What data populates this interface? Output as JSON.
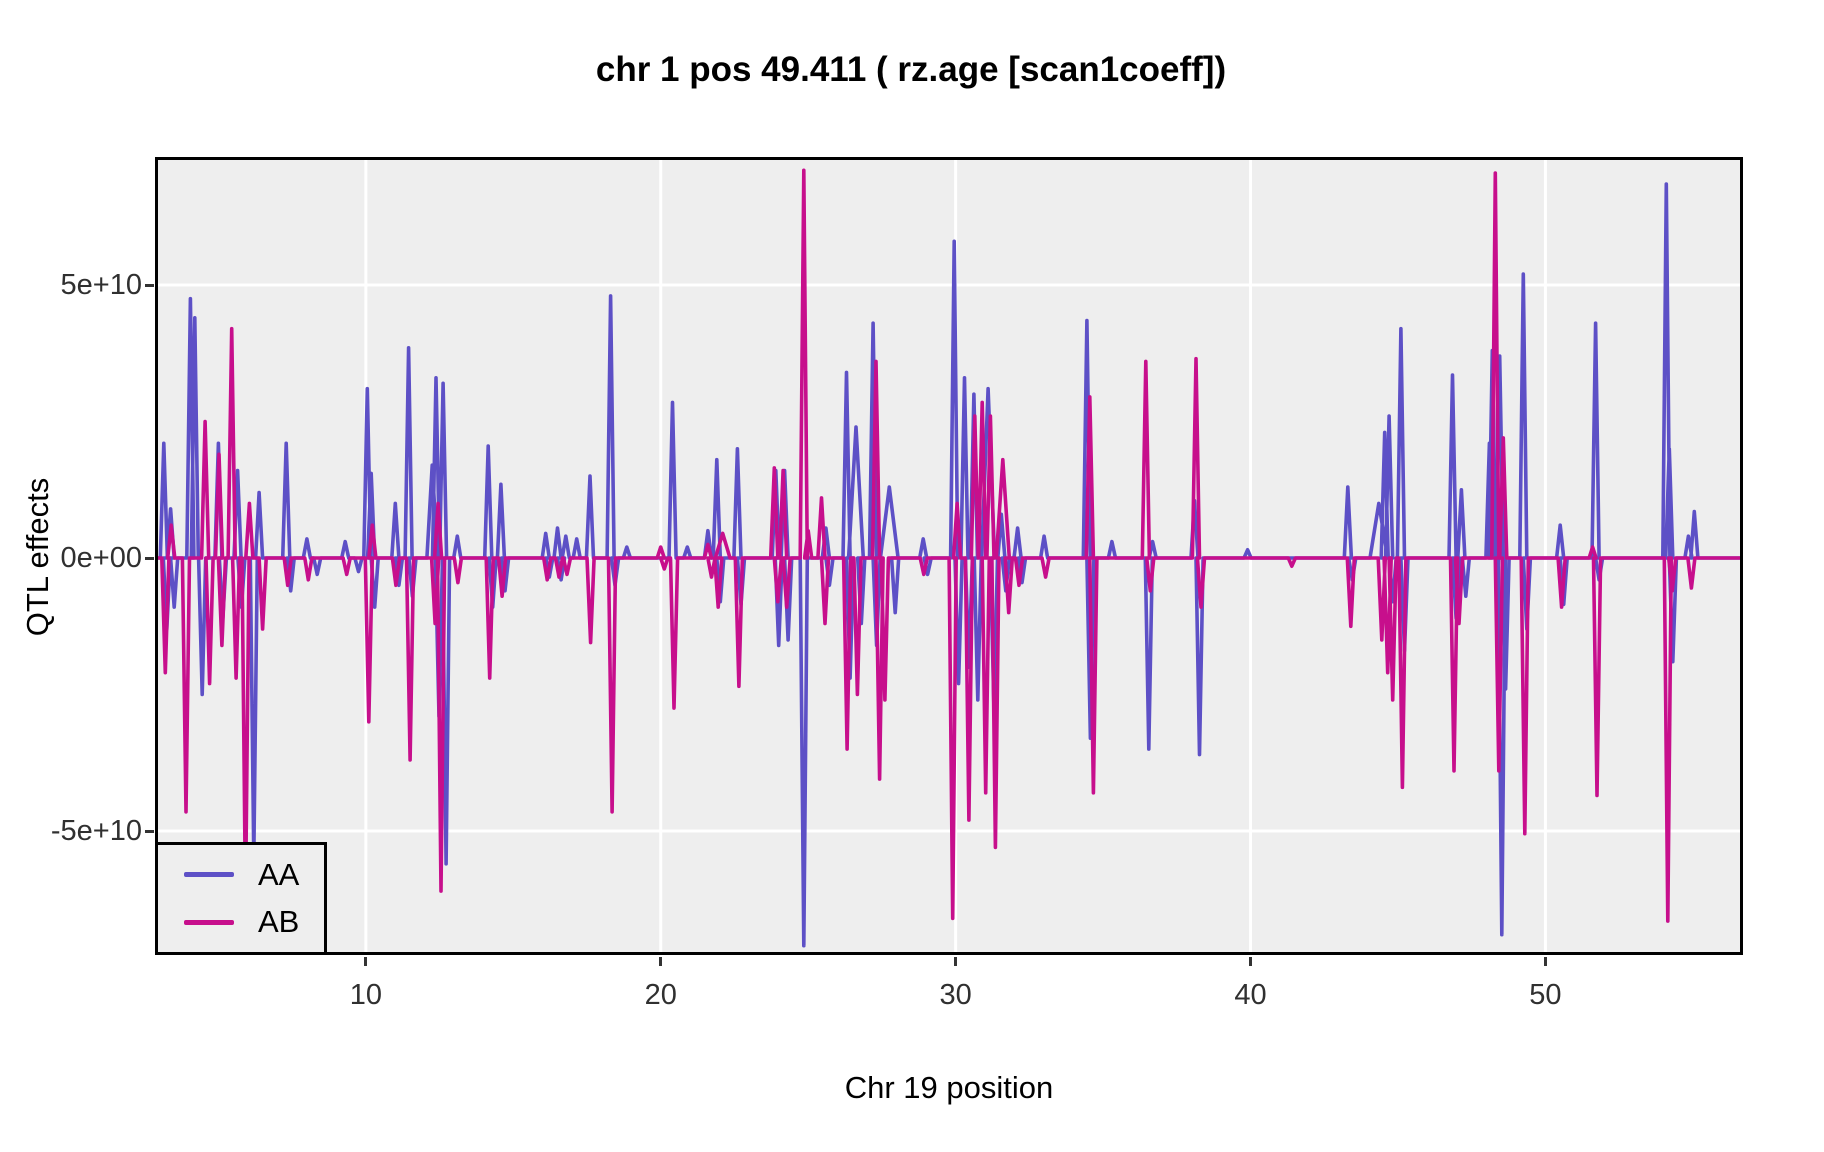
{
  "title": "chr 1 pos 49.411 ( rz.age  [scan1coeff])",
  "chart_data": {
    "type": "line",
    "title": "chr 1 pos 49.411 ( rz.age  [scan1coeff])",
    "xlabel": "Chr 19 position",
    "ylabel": "QTL effects",
    "xlim": [
      2.85,
      56.7
    ],
    "ylim": [
      -73000000000.0,
      73500000000.0
    ],
    "x_ticks": [
      10,
      20,
      30,
      40,
      50
    ],
    "y_ticks": [
      {
        "value": 50000000000.0,
        "label": "5e+10"
      },
      {
        "value": 0,
        "label": "0e+00"
      },
      {
        "value": -50000000000.0,
        "label": "-5e+10"
      }
    ],
    "grid": true,
    "panel_background": "#EEEEEE",
    "gridline_color": "#FFFFFF",
    "border_color": "#000000",
    "legend_position": "bottom-left",
    "series": [
      {
        "name": "AA",
        "color": "#5D50C6",
        "baseline": 0,
        "spikes": [
          [
            3.15,
            21000000000.0
          ],
          [
            3.25,
            -13000000000.0
          ],
          [
            3.38,
            9000000000.0
          ],
          [
            3.5,
            -9000000000.0
          ],
          [
            4.05,
            47500000000.0
          ],
          [
            4.2,
            44000000000.0
          ],
          [
            4.45,
            -25000000000.0
          ],
          [
            5.0,
            21000000000.0
          ],
          [
            5.15,
            -11000000000.0
          ],
          [
            5.65,
            16000000000.0
          ],
          [
            5.78,
            -9000000000.0
          ],
          [
            6.2,
            -55000000000.0
          ],
          [
            6.38,
            12000000000.0
          ],
          [
            7.3,
            21000000000.0
          ],
          [
            7.45,
            -6000000000.0
          ],
          [
            8.0,
            3500000000.0
          ],
          [
            8.35,
            -3000000000.0
          ],
          [
            9.3,
            3000000000.0
          ],
          [
            9.75,
            -2500000000.0
          ],
          [
            10.05,
            31000000000.0
          ],
          [
            10.18,
            15500000000.0
          ],
          [
            10.3,
            -9000000000.0
          ],
          [
            11.0,
            10000000000.0
          ],
          [
            11.12,
            -5000000000.0
          ],
          [
            11.45,
            38500000000.0
          ],
          [
            11.58,
            -7000000000.0
          ],
          [
            12.25,
            17000000000.0,
            0.18
          ],
          [
            12.38,
            33000000000.0
          ],
          [
            12.48,
            -29000000000.0
          ],
          [
            12.62,
            32000000000.0
          ],
          [
            12.72,
            -56000000000.0
          ],
          [
            13.1,
            4000000000.0
          ],
          [
            14.15,
            20500000000.0
          ],
          [
            14.3,
            -9000000000.0
          ],
          [
            14.58,
            13500000000.0
          ],
          [
            14.72,
            -6000000000.0
          ],
          [
            16.1,
            4500000000.0
          ],
          [
            16.22,
            -3500000000.0
          ],
          [
            16.5,
            5500000000.0
          ],
          [
            16.62,
            -4000000000.0
          ],
          [
            16.78,
            4000000000.0
          ],
          [
            17.15,
            3500000000.0
          ],
          [
            17.6,
            15000000000.0
          ],
          [
            18.3,
            48000000000.0
          ],
          [
            18.45,
            -5000000000.0
          ],
          [
            18.85,
            2000000000.0
          ],
          [
            20.4,
            28500000000.0
          ],
          [
            20.9,
            2000000000.0
          ],
          [
            21.6,
            5000000000.0
          ],
          [
            21.9,
            18000000000.0
          ],
          [
            22.02,
            -8000000000.0
          ],
          [
            22.6,
            20000000000.0
          ],
          [
            22.72,
            -8500000000.0
          ],
          [
            23.9,
            16000000000.0
          ],
          [
            24.0,
            -16000000000.0
          ],
          [
            24.2,
            16000000000.0
          ],
          [
            24.32,
            -15000000000.0
          ],
          [
            24.85,
            -71000000000.0
          ],
          [
            25.6,
            5500000000.0
          ],
          [
            25.72,
            -5000000000.0
          ],
          [
            26.3,
            34000000000.0
          ],
          [
            26.42,
            -22000000000.0
          ],
          [
            26.62,
            24000000000.0,
            0.25
          ],
          [
            26.8,
            -12000000000.0
          ],
          [
            27.2,
            43000000000.0
          ],
          [
            27.32,
            -16000000000.0
          ],
          [
            27.75,
            13000000000.0,
            0.3
          ],
          [
            27.95,
            -10000000000.0
          ],
          [
            28.9,
            3500000000.0
          ],
          [
            29.05,
            -3000000000.0
          ],
          [
            29.95,
            58000000000.0
          ],
          [
            30.1,
            -23000000000.0
          ],
          [
            30.3,
            33000000000.0
          ],
          [
            30.45,
            -20000000000.0
          ],
          [
            30.62,
            30000000000.0
          ],
          [
            30.75,
            -26000000000.0
          ],
          [
            31.1,
            31000000000.0,
            0.22
          ],
          [
            31.3,
            -28000000000.0
          ],
          [
            31.55,
            8000000000.0
          ],
          [
            31.7,
            -6000000000.0
          ],
          [
            32.1,
            5500000000.0
          ],
          [
            32.25,
            -4500000000.0
          ],
          [
            33.0,
            4000000000.0
          ],
          [
            34.45,
            43500000000.0
          ],
          [
            34.57,
            -33000000000.0
          ],
          [
            35.3,
            3000000000.0
          ],
          [
            36.55,
            -35000000000.0
          ],
          [
            36.68,
            3000000000.0
          ],
          [
            38.1,
            10500000000.0
          ],
          [
            38.27,
            -36000000000.0
          ],
          [
            39.9,
            1500000000.0
          ],
          [
            43.3,
            13000000000.0
          ],
          [
            43.45,
            -4000000000.0
          ],
          [
            44.35,
            10000000000.0,
            0.3
          ],
          [
            44.55,
            23000000000.0
          ],
          [
            44.7,
            26000000000.0
          ],
          [
            44.82,
            -8000000000.0
          ],
          [
            45.1,
            42000000000.0
          ],
          [
            45.22,
            -17000000000.0
          ],
          [
            46.85,
            33500000000.0
          ],
          [
            46.97,
            -11000000000.0
          ],
          [
            47.15,
            12500000000.0
          ],
          [
            47.3,
            -7000000000.0
          ],
          [
            48.1,
            21000000000.0
          ],
          [
            48.2,
            38000000000.0
          ],
          [
            48.45,
            37000000000.0
          ],
          [
            48.52,
            -69000000000.0
          ],
          [
            48.65,
            -24000000000.0
          ],
          [
            49.25,
            52000000000.0
          ],
          [
            49.37,
            -13000000000.0
          ],
          [
            50.5,
            6000000000.0
          ],
          [
            50.62,
            -8500000000.0
          ],
          [
            51.7,
            43000000000.0
          ],
          [
            51.82,
            -4000000000.0
          ],
          [
            54.1,
            68500000000.0
          ],
          [
            54.2,
            20000000000.0
          ],
          [
            54.32,
            -19000000000.0
          ],
          [
            54.85,
            4000000000.0
          ],
          [
            55.05,
            8500000000.0
          ]
        ]
      },
      {
        "name": "AB",
        "color": "#C70F8C",
        "baseline": 0,
        "spikes": [
          [
            3.2,
            -21000000000.0
          ],
          [
            3.4,
            6000000000.0
          ],
          [
            3.9,
            -46500000000.0
          ],
          [
            4.55,
            25000000000.0
          ],
          [
            4.7,
            -23000000000.0
          ],
          [
            5.02,
            19000000000.0
          ],
          [
            5.12,
            -16000000000.0
          ],
          [
            5.45,
            42000000000.0
          ],
          [
            5.6,
            -22000000000.0
          ],
          [
            5.92,
            -63000000000.0
          ],
          [
            6.05,
            10000000000.0
          ],
          [
            6.5,
            -13000000000.0
          ],
          [
            7.35,
            -5000000000.0
          ],
          [
            8.05,
            -4000000000.0
          ],
          [
            9.35,
            -3000000000.0
          ],
          [
            10.1,
            -30000000000.0
          ],
          [
            10.22,
            6000000000.0
          ],
          [
            11.02,
            -5000000000.0
          ],
          [
            11.5,
            -37000000000.0
          ],
          [
            12.35,
            -12000000000.0
          ],
          [
            12.45,
            10000000000.0
          ],
          [
            12.55,
            -61000000000.0
          ],
          [
            13.12,
            -4500000000.0
          ],
          [
            14.2,
            -22000000000.0
          ],
          [
            14.62,
            -7000000000.0
          ],
          [
            16.15,
            -4000000000.0
          ],
          [
            16.55,
            -3500000000.0
          ],
          [
            16.82,
            -3000000000.0
          ],
          [
            17.62,
            -15500000000.0
          ],
          [
            18.35,
            -46500000000.0
          ],
          [
            20.0,
            2000000000.0
          ],
          [
            20.12,
            -2000000000.0
          ],
          [
            20.45,
            -27500000000.0
          ],
          [
            21.6,
            2500000000.0
          ],
          [
            21.72,
            -3500000000.0
          ],
          [
            21.95,
            -9000000000.0
          ],
          [
            22.1,
            4500000000.0,
            0.25
          ],
          [
            22.65,
            -23500000000.0
          ],
          [
            23.85,
            16500000000.0
          ],
          [
            23.97,
            -8000000000.0
          ],
          [
            24.15,
            16000000000.0
          ],
          [
            24.27,
            -9000000000.0
          ],
          [
            24.85,
            71000000000.0
          ],
          [
            25.0,
            5000000000.0
          ],
          [
            25.45,
            11000000000.0
          ],
          [
            25.57,
            -12000000000.0
          ],
          [
            26.32,
            -35000000000.0
          ],
          [
            26.67,
            -25000000000.0
          ],
          [
            27.3,
            36000000000.0
          ],
          [
            27.42,
            -40500000000.0
          ],
          [
            27.6,
            -26000000000.0
          ],
          [
            28.92,
            -3000000000.0
          ],
          [
            29.9,
            -66000000000.0
          ],
          [
            30.05,
            10000000000.0
          ],
          [
            30.45,
            -48000000000.0
          ],
          [
            30.65,
            26000000000.0
          ],
          [
            30.9,
            28500000000.0
          ],
          [
            31.02,
            -43000000000.0
          ],
          [
            31.18,
            26000000000.0
          ],
          [
            31.35,
            -53000000000.0
          ],
          [
            31.6,
            18000000000.0,
            0.22
          ],
          [
            31.8,
            -10000000000.0
          ],
          [
            32.15,
            -5000000000.0
          ],
          [
            33.05,
            -3500000000.0
          ],
          [
            34.55,
            29500000000.0
          ],
          [
            34.67,
            -43000000000.0
          ],
          [
            36.45,
            36000000000.0
          ],
          [
            36.6,
            -6000000000.0
          ],
          [
            38.15,
            36500000000.0
          ],
          [
            38.32,
            -9000000000.0
          ],
          [
            41.4,
            -1500000000.0
          ],
          [
            43.4,
            -12500000000.0
          ],
          [
            44.45,
            -15000000000.0
          ],
          [
            44.65,
            -21000000000.0
          ],
          [
            44.82,
            -26000000000.0
          ],
          [
            45.15,
            -42000000000.0
          ],
          [
            46.9,
            -39000000000.0
          ],
          [
            47.07,
            -12000000000.0
          ],
          [
            48.3,
            70500000000.0
          ],
          [
            48.42,
            -39000000000.0
          ],
          [
            48.57,
            22000000000.0
          ],
          [
            49.3,
            -50500000000.0
          ],
          [
            50.55,
            -9000000000.0
          ],
          [
            51.6,
            2000000000.0
          ],
          [
            51.75,
            -43500000000.0
          ],
          [
            54.15,
            -66500000000.0
          ],
          [
            54.3,
            -6000000000.0
          ],
          [
            54.95,
            -5500000000.0
          ]
        ]
      }
    ]
  },
  "legend": {
    "entries": [
      {
        "label": "AA"
      },
      {
        "label": "AB"
      }
    ]
  }
}
